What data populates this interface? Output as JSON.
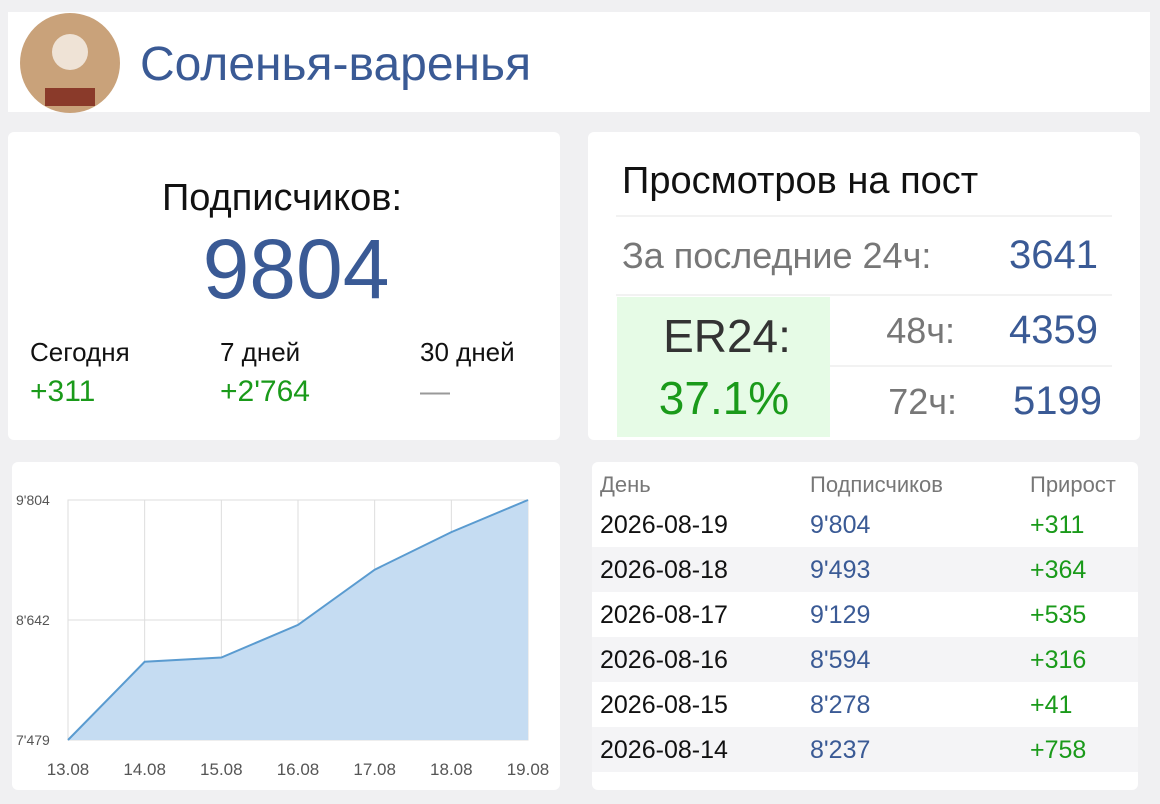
{
  "header": {
    "title": "Соленья-варенья"
  },
  "subscribers": {
    "label": "Подписчиков:",
    "value": 9804,
    "periods": [
      {
        "label": "Сегодня",
        "value": "+311"
      },
      {
        "label": "7 дней",
        "value": "+2'764"
      },
      {
        "label": "30 дней",
        "value": "—"
      }
    ]
  },
  "views": {
    "title": "Просмотров на пост",
    "rows": [
      {
        "label": "За последние 24ч:",
        "value": 3641
      },
      {
        "label": "48ч:",
        "value": 4359
      },
      {
        "label": "72ч:",
        "value": 5199
      }
    ],
    "er": {
      "label": "ER24:",
      "value": "37.1%"
    }
  },
  "chart_data": {
    "type": "area",
    "categories": [
      "13.08",
      "14.08",
      "15.08",
      "16.08",
      "17.08",
      "18.08",
      "19.08"
    ],
    "values": [
      7479,
      8237,
      8278,
      8594,
      9129,
      9493,
      9804
    ],
    "color": "#5a9bd0",
    "fill": "#c5dcf2",
    "ylim": [
      7479,
      9804
    ],
    "yticks": [
      {
        "value": 7479,
        "label": "7'479"
      },
      {
        "value": 8642,
        "label": "8'642"
      },
      {
        "value": 9804,
        "label": "9'804"
      }
    ],
    "grid": true
  },
  "table": {
    "header": [
      "День",
      "Подписчиков",
      "Прирост"
    ],
    "rows": [
      [
        "2026-08-19",
        "9'804",
        "+311"
      ],
      [
        "2026-08-18",
        "9'493",
        "+364"
      ],
      [
        "2026-08-17",
        "9'129",
        "+535"
      ],
      [
        "2026-08-16",
        "8'594",
        "+316"
      ],
      [
        "2026-08-15",
        "8'278",
        "+41"
      ],
      [
        "2026-08-14",
        "8'237",
        "+758"
      ]
    ]
  }
}
